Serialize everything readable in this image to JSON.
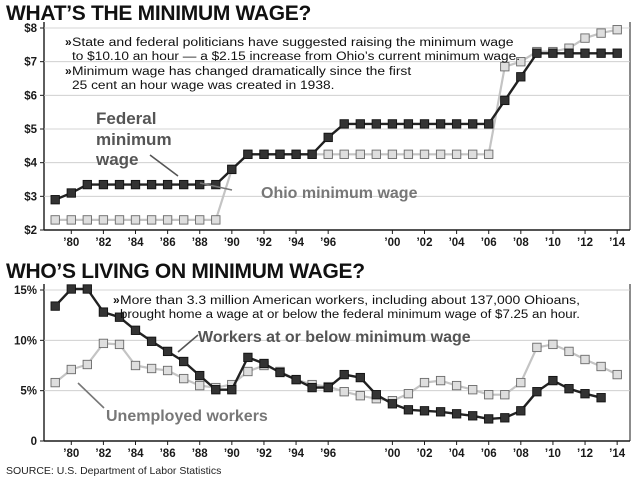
{
  "source": "SOURCE: U.S. Department of Labor Statistics",
  "colors": {
    "dark_series": "#333333",
    "light_series": "#bdbdbd",
    "axis": "#1a1a1a",
    "annotation": "#555555"
  },
  "chart_data": [
    {
      "type": "line",
      "title": "WHAT’S THE MINIMUM WAGE?",
      "x_tick_labels": [
        "’80",
        "’82",
        "’84",
        "’86",
        "’88",
        "’90",
        "’92",
        "’94",
        "’96",
        "’00",
        "’02",
        "’04",
        "’06",
        "’08",
        "’10",
        "’12",
        "’14"
      ],
      "y_tick_labels": [
        "$2",
        "$3",
        "$4",
        "$5",
        "$6",
        "$7",
        "$8"
      ],
      "ylim": [
        2,
        8
      ],
      "xlim": [
        1979,
        2014
      ],
      "notes": [
        "State and federal politicians have suggested raising the minimum wage",
        "to $10.10 an hour — a $2.15 increase from Ohio’s current minimum wage.",
        "Minimum wage has changed dramatically since the first",
        "25 cent an hour wage was created in 1938."
      ],
      "series": [
        {
          "name": "Federal minimum wage",
          "label_lines": [
            "Federal",
            "minimum",
            "wage"
          ],
          "style": "dark",
          "x": [
            1979,
            1980,
            1981,
            1982,
            1983,
            1984,
            1985,
            1986,
            1987,
            1988,
            1989,
            1990,
            1991,
            1992,
            1993,
            1994,
            1995,
            1996,
            1997,
            1998,
            1999,
            2000,
            2001,
            2002,
            2003,
            2004,
            2005,
            2006,
            2007,
            2008,
            2009,
            2010,
            2011,
            2012,
            2013,
            2014
          ],
          "values": [
            2.9,
            3.1,
            3.35,
            3.35,
            3.35,
            3.35,
            3.35,
            3.35,
            3.35,
            3.35,
            3.35,
            3.8,
            4.25,
            4.25,
            4.25,
            4.25,
            4.25,
            4.75,
            5.15,
            5.15,
            5.15,
            5.15,
            5.15,
            5.15,
            5.15,
            5.15,
            5.15,
            5.15,
            5.85,
            6.55,
            7.25,
            7.25,
            7.25,
            7.25,
            7.25,
            7.25
          ]
        },
        {
          "name": "Ohio minimum wage",
          "label_lines": [
            "Ohio minimum wage"
          ],
          "style": "light",
          "x": [
            1979,
            1980,
            1981,
            1982,
            1983,
            1984,
            1985,
            1986,
            1987,
            1988,
            1989,
            1990,
            1991,
            1992,
            1993,
            1994,
            1995,
            1996,
            1997,
            1998,
            1999,
            2000,
            2001,
            2002,
            2003,
            2004,
            2005,
            2006,
            2007,
            2008,
            2009,
            2010,
            2011,
            2012,
            2013,
            2014
          ],
          "values": [
            2.3,
            2.3,
            2.3,
            2.3,
            2.3,
            2.3,
            2.3,
            2.3,
            2.3,
            2.3,
            2.3,
            3.8,
            4.25,
            4.25,
            4.25,
            4.25,
            4.25,
            4.25,
            4.25,
            4.25,
            4.25,
            4.25,
            4.25,
            4.25,
            4.25,
            4.25,
            4.25,
            4.25,
            6.85,
            7.0,
            7.3,
            7.3,
            7.4,
            7.7,
            7.85,
            7.95
          ]
        }
      ]
    },
    {
      "type": "line",
      "title": "WHO’S LIVING ON MINIMUM WAGE?",
      "x_tick_labels": [
        "’80",
        "’82",
        "’84",
        "’86",
        "’88",
        "’90",
        "’92",
        "’94",
        "’96",
        "’00",
        "’02",
        "’04",
        "’06",
        "’08",
        "’10",
        "’12",
        "’14"
      ],
      "y_tick_labels": [
        "0",
        "5%",
        "10%",
        "15%"
      ],
      "ylim": [
        0,
        15
      ],
      "xlim": [
        1979,
        2014
      ],
      "notes": [
        "More than 3.3 million American workers, including about 137,000 Ohioans,",
        "brought home a wage at or below the federal minimum wage of $7.25 an hour."
      ],
      "series": [
        {
          "name": "Workers at or below minimum wage",
          "label_lines": [
            "Workers at or below minimum wage"
          ],
          "style": "dark",
          "x": [
            1979,
            1980,
            1981,
            1982,
            1983,
            1984,
            1985,
            1986,
            1987,
            1988,
            1989,
            1990,
            1991,
            1992,
            1993,
            1994,
            1995,
            1996,
            1997,
            1998,
            1999,
            2000,
            2001,
            2002,
            2003,
            2004,
            2005,
            2006,
            2007,
            2008,
            2009,
            2010,
            2011,
            2012,
            2013
          ],
          "values": [
            13.4,
            15.1,
            15.1,
            12.8,
            12.3,
            11.0,
            9.9,
            8.9,
            7.9,
            6.5,
            5.1,
            5.1,
            8.3,
            7.7,
            6.8,
            6.1,
            5.3,
            5.3,
            6.6,
            6.3,
            4.6,
            3.7,
            3.1,
            3.0,
            2.9,
            2.7,
            2.5,
            2.2,
            2.3,
            3.0,
            4.9,
            6.0,
            5.2,
            4.7,
            4.3
          ]
        },
        {
          "name": "Unemployed workers",
          "label_lines": [
            "Unemployed workers"
          ],
          "style": "light",
          "x": [
            1979,
            1980,
            1981,
            1982,
            1983,
            1984,
            1985,
            1986,
            1987,
            1988,
            1989,
            1990,
            1991,
            1992,
            1993,
            1994,
            1995,
            1996,
            1997,
            1998,
            1999,
            2000,
            2001,
            2002,
            2003,
            2004,
            2005,
            2006,
            2007,
            2008,
            2009,
            2010,
            2011,
            2012,
            2013,
            2014
          ],
          "values": [
            5.8,
            7.1,
            7.6,
            9.7,
            9.6,
            7.5,
            7.2,
            7.0,
            6.2,
            5.5,
            5.3,
            5.6,
            6.9,
            7.5,
            6.9,
            6.1,
            5.6,
            5.4,
            4.9,
            4.5,
            4.2,
            4.0,
            4.7,
            5.8,
            6.0,
            5.5,
            5.1,
            4.6,
            4.6,
            5.8,
            9.3,
            9.6,
            8.9,
            8.1,
            7.4,
            6.6
          ]
        }
      ]
    }
  ]
}
